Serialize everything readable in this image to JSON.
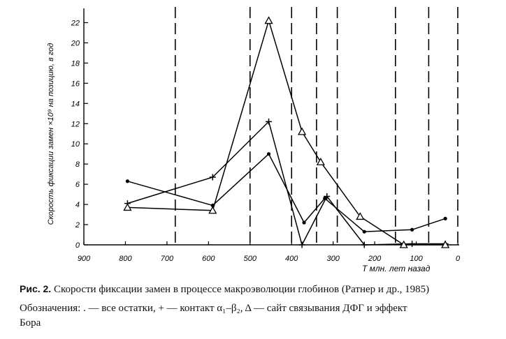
{
  "chart_data": {
    "type": "line",
    "xlabel": "T млн. лет назад",
    "ylabel": "Скорость фиксации замен ×10⁹ на позицию, в год",
    "xlim": [
      900,
      0
    ],
    "ylim": [
      0,
      23
    ],
    "x_ticks": [
      900,
      800,
      700,
      600,
      500,
      400,
      300,
      200,
      100,
      0
    ],
    "y_ticks": [
      0,
      2,
      4,
      6,
      8,
      10,
      12,
      14,
      16,
      18,
      20,
      22
    ],
    "grid": false,
    "vertical_dashed_lines": [
      680,
      500,
      400,
      340,
      290,
      150,
      70,
      0
    ],
    "series": [
      {
        "marker": "dot",
        "x": [
          795,
          590,
          455,
          370,
          320,
          225,
          110,
          30
        ],
        "y": [
          6.3,
          3.9,
          9.0,
          2.2,
          4.6,
          1.3,
          1.5,
          2.6
        ]
      },
      {
        "marker": "plus",
        "x": [
          795,
          590,
          455,
          375,
          315,
          225,
          110,
          30
        ],
        "y": [
          4.1,
          6.7,
          12.2,
          0.0,
          4.8,
          0.0,
          0.1,
          0.1
        ]
      },
      {
        "marker": "triangle",
        "x": [
          795,
          590,
          455,
          375,
          330,
          235,
          130,
          30
        ],
        "y": [
          3.7,
          3.4,
          22.2,
          11.2,
          8.2,
          2.8,
          0.0,
          0.0
        ]
      }
    ]
  },
  "caption": {
    "figure_number": "Рис. 2.",
    "title": "Скорости фиксации замен в процессе макроэволюции глобинов (Ратнер и др., 1985)",
    "legend_line1": "Обозначения: . — все остатки, + — контакт α₁–β₂, Δ — сайт связывания ДФГ и эффект",
    "legend_line2": "Бора"
  },
  "colors": {
    "ink": "#000000",
    "background": "#ffffff"
  }
}
